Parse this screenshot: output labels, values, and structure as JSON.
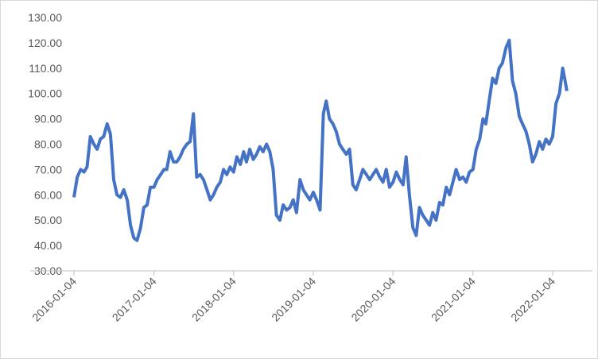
{
  "chart_data": {
    "type": "line",
    "x": [
      "2016-01-04",
      "2016-01-19",
      "2016-02-04",
      "2016-02-19",
      "2016-03-04",
      "2016-03-19",
      "2016-04-04",
      "2016-04-19",
      "2016-05-04",
      "2016-05-19",
      "2016-06-04",
      "2016-06-19",
      "2016-07-04",
      "2016-07-19",
      "2016-08-04",
      "2016-08-19",
      "2016-09-04",
      "2016-09-19",
      "2016-10-04",
      "2016-10-19",
      "2016-11-04",
      "2016-11-19",
      "2016-12-04",
      "2016-12-19",
      "2017-01-04",
      "2017-01-19",
      "2017-02-04",
      "2017-02-19",
      "2017-03-04",
      "2017-03-19",
      "2017-04-04",
      "2017-04-19",
      "2017-05-04",
      "2017-05-19",
      "2017-06-04",
      "2017-06-19",
      "2017-07-04",
      "2017-07-19",
      "2017-08-04",
      "2017-08-19",
      "2017-09-04",
      "2017-09-19",
      "2017-10-04",
      "2017-10-19",
      "2017-11-04",
      "2017-11-19",
      "2017-12-04",
      "2017-12-19",
      "2018-01-04",
      "2018-01-19",
      "2018-02-04",
      "2018-02-19",
      "2018-03-04",
      "2018-03-19",
      "2018-04-04",
      "2018-04-19",
      "2018-05-04",
      "2018-05-19",
      "2018-06-04",
      "2018-06-19",
      "2018-07-04",
      "2018-07-19",
      "2018-08-04",
      "2018-08-19",
      "2018-09-04",
      "2018-09-19",
      "2018-10-04",
      "2018-10-19",
      "2018-11-04",
      "2018-11-19",
      "2018-12-04",
      "2018-12-19",
      "2019-01-04",
      "2019-01-19",
      "2019-02-04",
      "2019-02-19",
      "2019-03-04",
      "2019-03-19",
      "2019-04-04",
      "2019-04-19",
      "2019-05-04",
      "2019-05-19",
      "2019-06-04",
      "2019-06-19",
      "2019-07-04",
      "2019-07-19",
      "2019-08-04",
      "2019-08-19",
      "2019-09-04",
      "2019-09-19",
      "2019-10-04",
      "2019-10-19",
      "2019-11-04",
      "2019-11-19",
      "2019-12-04",
      "2019-12-19",
      "2020-01-04",
      "2020-01-19",
      "2020-02-04",
      "2020-02-19",
      "2020-03-04",
      "2020-03-19",
      "2020-04-04",
      "2020-04-19",
      "2020-05-04",
      "2020-05-19",
      "2020-06-04",
      "2020-06-19",
      "2020-07-04",
      "2020-07-19",
      "2020-08-04",
      "2020-08-19",
      "2020-09-04",
      "2020-09-19",
      "2020-10-04",
      "2020-10-19",
      "2020-11-04",
      "2020-11-19",
      "2020-12-04",
      "2020-12-19",
      "2021-01-04",
      "2021-01-19",
      "2021-02-04",
      "2021-02-19",
      "2021-03-04",
      "2021-03-19",
      "2021-04-04",
      "2021-04-19",
      "2021-05-04",
      "2021-05-19",
      "2021-06-04",
      "2021-06-19",
      "2021-07-04",
      "2021-07-19",
      "2021-08-04",
      "2021-08-19",
      "2021-09-04",
      "2021-09-19",
      "2021-10-04",
      "2021-10-19",
      "2021-11-04",
      "2021-11-19",
      "2021-12-04",
      "2021-12-19",
      "2022-01-04",
      "2022-01-19",
      "2022-02-04",
      "2022-02-19",
      "2022-03-04",
      "2022-03-10"
    ],
    "series": [
      {
        "color": "#4472c4",
        "values": [
          59,
          67,
          70,
          69,
          71,
          83,
          80,
          78,
          82,
          83,
          88,
          84,
          66,
          60,
          59,
          62,
          58,
          48,
          43,
          42,
          47,
          55,
          56,
          63,
          63,
          66,
          68,
          70,
          70,
          77,
          73,
          73,
          75,
          78,
          80,
          81,
          92,
          67,
          68,
          66,
          62,
          58,
          60,
          63,
          65,
          70,
          68,
          71,
          69,
          75,
          72,
          77,
          73,
          78,
          74,
          76,
          79,
          77,
          80,
          77,
          70,
          52,
          50,
          56,
          54,
          55,
          58,
          53,
          66,
          62,
          60,
          58,
          61,
          58,
          54,
          92,
          97,
          90,
          88,
          85,
          80,
          78,
          76,
          78,
          64,
          62,
          66,
          70,
          68,
          66,
          68,
          70,
          67,
          65,
          70,
          63,
          65,
          69,
          66,
          64,
          75,
          60,
          47,
          44,
          55,
          52,
          50,
          48,
          53,
          50,
          57,
          56,
          63,
          60,
          65,
          70,
          66,
          67,
          65,
          69,
          70,
          78,
          82,
          90,
          88,
          97,
          106,
          104,
          110,
          112,
          118,
          121,
          105,
          100,
          91,
          88,
          85,
          80,
          73,
          76,
          81,
          78,
          82,
          80,
          83,
          96,
          100,
          110,
          104,
          101
        ]
      }
    ],
    "ylim": [
      30,
      130
    ],
    "yticks": [
      {
        "value": 30,
        "label": "30.00"
      },
      {
        "value": 40,
        "label": "40.00"
      },
      {
        "value": 50,
        "label": "50.00"
      },
      {
        "value": 60,
        "label": "60.00"
      },
      {
        "value": 70,
        "label": "70.00"
      },
      {
        "value": 80,
        "label": "80.00"
      },
      {
        "value": 90,
        "label": "90.00"
      },
      {
        "value": 100,
        "label": "100.00"
      },
      {
        "value": 110,
        "label": "110.00"
      },
      {
        "value": 120,
        "label": "120.00"
      },
      {
        "value": 130,
        "label": "130.00"
      }
    ],
    "xticks": [
      "2016-01-04",
      "2017-01-04",
      "2018-01-04",
      "2019-01-04",
      "2020-01-04",
      "2021-01-04",
      "2022-01-04"
    ],
    "grid": false
  }
}
